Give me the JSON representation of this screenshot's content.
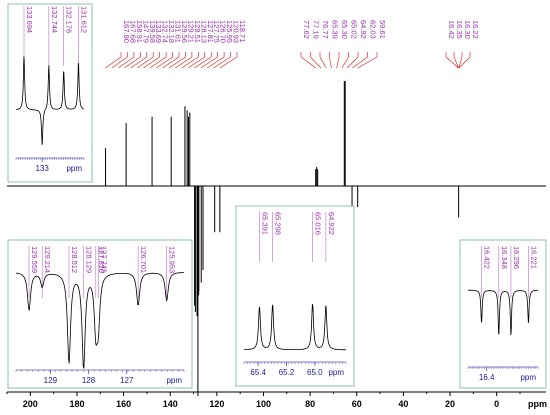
{
  "colors": {
    "peak_label": "#9b2fae",
    "leader": "#e01010",
    "spectrum": "#000000",
    "axis": "#000000",
    "inset_text": "#1a1aa0",
    "inset_border": "#8fbfa8",
    "inset_tick": "#5555c8"
  },
  "chart_data": [
    {
      "type": "line",
      "chart": "main-spectrum",
      "xlabel": "ppm",
      "xlim": [
        210,
        -10
      ],
      "x_reversed": true,
      "tick_labels": [
        "200",
        "180",
        "160",
        "140",
        "120",
        "100",
        "80",
        "60",
        "40",
        "20",
        "0"
      ],
      "tick_values": [
        200,
        180,
        160,
        140,
        120,
        100,
        80,
        60,
        40,
        20,
        0
      ],
      "peak_labels": [
        "167.80",
        "167.68",
        "158.91",
        "147.79",
        "139.58",
        "133.69",
        "132.74",
        "132.18",
        "131.61",
        "129.56",
        "129.21",
        "128.51",
        "128.13",
        "127.81",
        "127.75",
        "126.70",
        "125.95",
        "120.93",
        "118.71",
        "77.62",
        "77.19",
        "76.77",
        "65.39",
        "65.30",
        "65.02",
        "64.92",
        "62.03",
        "59.61",
        "16.42",
        "16.35",
        "16.30",
        "16.22"
      ],
      "peaks": [
        {
          "ppm": 167.74,
          "height": 0.18
        },
        {
          "ppm": 158.91,
          "height": 0.3
        },
        {
          "ppm": 147.79,
          "height": 0.33
        },
        {
          "ppm": 139.58,
          "height": 0.33
        },
        {
          "ppm": 133.69,
          "height": 0.38
        },
        {
          "ppm": 132.74,
          "height": 0.36
        },
        {
          "ppm": 132.18,
          "height": 0.33
        },
        {
          "ppm": 131.61,
          "height": 0.35
        },
        {
          "ppm": 129.56,
          "height": -0.57
        },
        {
          "ppm": 129.21,
          "height": -0.6
        },
        {
          "ppm": 128.51,
          "height": -0.62
        },
        {
          "ppm": 128.13,
          "height": -1.0
        },
        {
          "ppm": 127.81,
          "height": -0.52
        },
        {
          "ppm": 127.75,
          "height": -0.5
        },
        {
          "ppm": 126.7,
          "height": -0.46
        },
        {
          "ppm": 125.95,
          "height": -0.4
        },
        {
          "ppm": 120.93,
          "height": -0.22
        },
        {
          "ppm": 118.71,
          "height": -0.22
        },
        {
          "ppm": 77.62,
          "height": 0.08
        },
        {
          "ppm": 77.19,
          "height": 0.09
        },
        {
          "ppm": 76.77,
          "height": 0.08
        },
        {
          "ppm": 65.35,
          "height": 0.5
        },
        {
          "ppm": 64.97,
          "height": 0.5
        },
        {
          "ppm": 62.03,
          "height": -0.1
        },
        {
          "ppm": 59.61,
          "height": -0.1
        },
        {
          "ppm": 16.32,
          "height": -0.15
        }
      ]
    },
    {
      "type": "line",
      "chart": "inset-133",
      "xlabel": "ppm",
      "xlim": [
        134.0,
        131.4
      ],
      "tick_labels": [
        "133"
      ],
      "tick_values": [
        133
      ],
      "peak_labels": [
        "133.694",
        "132.744",
        "132.176",
        "131.612"
      ],
      "peaks": [
        {
          "ppm": 133.694,
          "height": 0.9
        },
        {
          "ppm": 133.0,
          "height": -0.6
        },
        {
          "ppm": 132.744,
          "height": 0.75
        },
        {
          "ppm": 132.176,
          "height": 0.65
        },
        {
          "ppm": 131.612,
          "height": 0.8
        }
      ]
    },
    {
      "type": "line",
      "chart": "inset-128",
      "xlabel": "ppm",
      "xlim": [
        129.9,
        125.5
      ],
      "tick_labels": [
        "129",
        "128",
        "127"
      ],
      "tick_values": [
        129,
        128,
        127
      ],
      "peak_labels": [
        "129.559",
        "129.214",
        "128.512",
        "128.129",
        "127.810",
        "127.745",
        "126.701",
        "125.953"
      ],
      "peaks": [
        {
          "ppm": 129.559,
          "height": -0.4
        },
        {
          "ppm": 129.214,
          "height": -0.15
        },
        {
          "ppm": 128.512,
          "height": -0.95
        },
        {
          "ppm": 128.129,
          "height": -1.0
        },
        {
          "ppm": 127.81,
          "height": -0.55
        },
        {
          "ppm": 127.745,
          "height": -0.5
        },
        {
          "ppm": 126.701,
          "height": -0.35
        },
        {
          "ppm": 125.953,
          "height": -0.3
        }
      ]
    },
    {
      "type": "line",
      "chart": "inset-65",
      "xlabel": "ppm",
      "xlim": [
        65.5,
        64.78
      ],
      "tick_labels": [
        "65.4",
        "65.2",
        "65.0"
      ],
      "tick_values": [
        65.4,
        65.2,
        65.0
      ],
      "peak_labels": [
        "65.391",
        "65.298",
        "65.016",
        "64.922"
      ],
      "peaks": [
        {
          "ppm": 65.391,
          "height": 0.62
        },
        {
          "ppm": 65.298,
          "height": 0.65
        },
        {
          "ppm": 65.016,
          "height": 0.66
        },
        {
          "ppm": 64.922,
          "height": 0.64
        }
      ]
    },
    {
      "type": "line",
      "chart": "inset-16",
      "xlabel": "ppm",
      "xlim": [
        16.48,
        16.18
      ],
      "tick_labels": [
        "16.4"
      ],
      "tick_values": [
        16.4
      ],
      "peak_labels": [
        "16.422",
        "16.348",
        "16.296",
        "16.221"
      ],
      "peaks": [
        {
          "ppm": 16.422,
          "height": -0.55
        },
        {
          "ppm": 16.348,
          "height": -0.75
        },
        {
          "ppm": 16.296,
          "height": -0.75
        },
        {
          "ppm": 16.221,
          "height": -0.55
        }
      ]
    }
  ]
}
